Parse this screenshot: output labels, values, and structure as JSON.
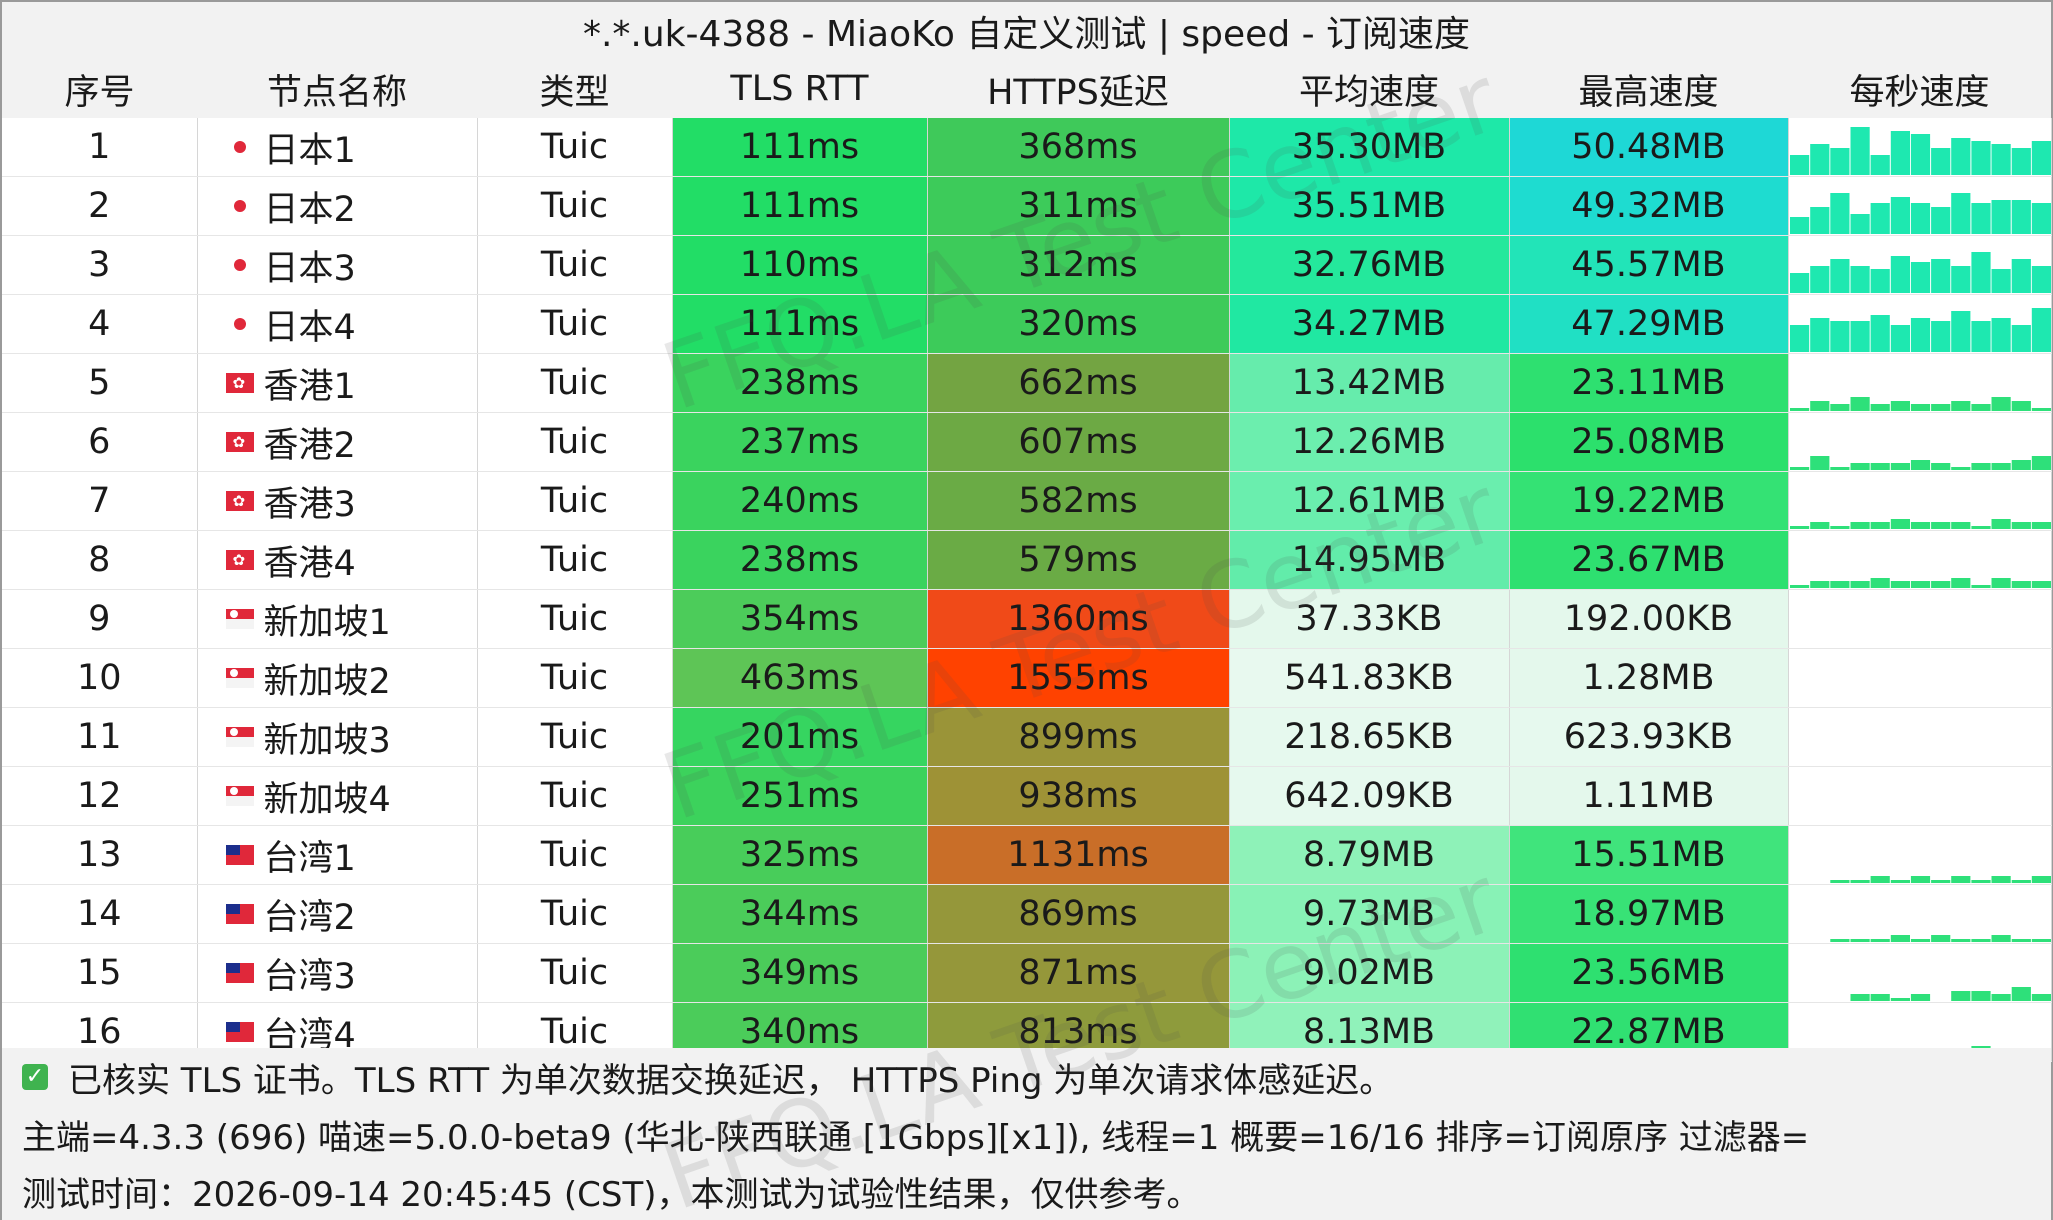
{
  "title": "*.*.uk-4388 - MiaoKo 自定义测试 | speed - 订阅速度",
  "columns": [
    "序号",
    "节点名称",
    "类型",
    "TLS RTT",
    "HTTPS延迟",
    "平均速度",
    "最高速度",
    "每秒速度"
  ],
  "rows": [
    {
      "idx": "1",
      "flag": "jp",
      "name": "日本1",
      "type": "Tuic",
      "tls": "111ms",
      "https": "368ms",
      "avg": "35.30MB",
      "max": "50.48MB",
      "tls_color": "#22dd66",
      "https_color": "#3fc95a",
      "avg_color": "#1ee8a8",
      "max_color": "#1ed8d6",
      "spark": [
        6,
        9,
        8,
        14,
        6,
        13,
        12,
        8,
        11,
        10,
        9,
        8,
        10
      ]
    },
    {
      "idx": "2",
      "flag": "jp",
      "name": "日本2",
      "type": "Tuic",
      "tls": "111ms",
      "https": "311ms",
      "avg": "35.51MB",
      "max": "49.32MB",
      "tls_color": "#22dd66",
      "https_color": "#3dcb5a",
      "avg_color": "#1ee8a8",
      "max_color": "#1edcd0",
      "spark": [
        5,
        8,
        12,
        6,
        9,
        11,
        9,
        8,
        12,
        9,
        10,
        10,
        9
      ]
    },
    {
      "idx": "3",
      "flag": "jp",
      "name": "日本3",
      "type": "Tuic",
      "tls": "110ms",
      "https": "312ms",
      "avg": "32.76MB",
      "max": "45.57MB",
      "tls_color": "#22dd66",
      "https_color": "#3dcb5a",
      "avg_color": "#24e89c",
      "max_color": "#22e4b8",
      "spark": [
        6,
        8,
        10,
        8,
        7,
        11,
        9,
        10,
        8,
        12,
        7,
        10,
        8
      ]
    },
    {
      "idx": "4",
      "flag": "jp",
      "name": "日本4",
      "type": "Tuic",
      "tls": "111ms",
      "https": "320ms",
      "avg": "34.27MB",
      "max": "47.29MB",
      "tls_color": "#22dd66",
      "https_color": "#3dcb5a",
      "avg_color": "#20e8a2",
      "max_color": "#20e0c4",
      "spark": [
        8,
        10,
        9,
        9,
        11,
        8,
        10,
        9,
        12,
        9,
        10,
        8,
        13
      ]
    },
    {
      "idx": "5",
      "flag": "hk",
      "name": "香港1",
      "type": "Tuic",
      "tls": "238ms",
      "https": "662ms",
      "avg": "13.42MB",
      "max": "23.11MB",
      "tls_color": "#3ad35e",
      "https_color": "#73a442",
      "avg_color": "#66ecac",
      "max_color": "#2ee070",
      "spark": [
        1,
        3,
        2,
        4,
        2,
        3,
        2,
        2,
        3,
        2,
        4,
        3,
        1
      ]
    },
    {
      "idx": "6",
      "flag": "hk",
      "name": "香港2",
      "type": "Tuic",
      "tls": "237ms",
      "https": "607ms",
      "avg": "12.26MB",
      "max": "25.08MB",
      "tls_color": "#3ad35e",
      "https_color": "#6da944",
      "avg_color": "#6ceeae",
      "max_color": "#2ce06c",
      "spark": [
        1,
        4,
        1,
        2,
        2,
        2,
        3,
        2,
        1,
        2,
        2,
        3,
        4
      ]
    },
    {
      "idx": "7",
      "flag": "hk",
      "name": "香港3",
      "type": "Tuic",
      "tls": "240ms",
      "https": "582ms",
      "avg": "12.61MB",
      "max": "19.22MB",
      "tls_color": "#3ad35e",
      "https_color": "#6aab45",
      "avg_color": "#6aeeae",
      "max_color": "#34e274",
      "spark": [
        1,
        2,
        1,
        2,
        2,
        3,
        2,
        2,
        2,
        1,
        3,
        2,
        2
      ]
    },
    {
      "idx": "8",
      "flag": "hk",
      "name": "香港4",
      "type": "Tuic",
      "tls": "238ms",
      "https": "579ms",
      "avg": "14.95MB",
      "max": "23.67MB",
      "tls_color": "#3ad35e",
      "https_color": "#6aab45",
      "avg_color": "#62ecaa",
      "max_color": "#2ee070",
      "spark": [
        1,
        2,
        2,
        2,
        3,
        2,
        2,
        2,
        3,
        1,
        3,
        2,
        2
      ]
    },
    {
      "idx": "9",
      "flag": "sg",
      "name": "新加坡1",
      "type": "Tuic",
      "tls": "354ms",
      "https": "1360ms",
      "avg": "37.33KB",
      "max": "192.00KB",
      "tls_color": "#4ccc5a",
      "https_color": "#f04a18",
      "avg_color": "#e4f8ec",
      "max_color": "#e4f8ec",
      "spark": []
    },
    {
      "idx": "10",
      "flag": "sg",
      "name": "新加坡2",
      "type": "Tuic",
      "tls": "463ms",
      "https": "1555ms",
      "avg": "541.83KB",
      "max": "1.28MB",
      "tls_color": "#5ec556",
      "https_color": "#ff4200",
      "avg_color": "#e8f9ef",
      "max_color": "#e4f8ec",
      "spark": []
    },
    {
      "idx": "11",
      "flag": "sg",
      "name": "新加坡3",
      "type": "Tuic",
      "tls": "201ms",
      "https": "899ms",
      "avg": "218.65KB",
      "max": "623.93KB",
      "tls_color": "#36d560",
      "https_color": "#9a9438",
      "avg_color": "#e6f9ee",
      "max_color": "#e6f9ee",
      "spark": []
    },
    {
      "idx": "12",
      "flag": "sg",
      "name": "新加坡4",
      "type": "Tuic",
      "tls": "251ms",
      "https": "938ms",
      "avg": "642.09KB",
      "max": "1.11MB",
      "tls_color": "#3cd25c",
      "https_color": "#9e9236",
      "avg_color": "#e6f9ee",
      "max_color": "#e4f8ec",
      "spark": []
    },
    {
      "idx": "13",
      "flag": "tw",
      "name": "台湾1",
      "type": "Tuic",
      "tls": "325ms",
      "https": "1131ms",
      "avg": "8.79MB",
      "max": "15.51MB",
      "tls_color": "#48cd5a",
      "https_color": "#c96e28",
      "avg_color": "#8ef2b8",
      "max_color": "#40e47c",
      "spark": [
        0,
        0,
        1,
        1,
        2,
        1,
        2,
        1,
        2,
        1,
        2,
        1,
        2
      ]
    },
    {
      "idx": "14",
      "flag": "tw",
      "name": "台湾2",
      "type": "Tuic",
      "tls": "344ms",
      "https": "869ms",
      "avg": "9.73MB",
      "max": "18.97MB",
      "tls_color": "#4bcc5a",
      "https_color": "#95973a",
      "avg_color": "#88f2b6",
      "max_color": "#38e276",
      "spark": [
        0,
        0,
        1,
        1,
        1,
        2,
        1,
        2,
        1,
        1,
        2,
        1,
        1
      ]
    },
    {
      "idx": "15",
      "flag": "tw",
      "name": "台湾3",
      "type": "Tuic",
      "tls": "349ms",
      "https": "871ms",
      "avg": "9.02MB",
      "max": "23.56MB",
      "tls_color": "#4bcc5a",
      "https_color": "#95973a",
      "avg_color": "#8cf2b7",
      "max_color": "#2ee070",
      "spark": [
        0,
        0,
        0,
        2,
        2,
        1,
        2,
        0,
        3,
        3,
        2,
        4,
        2
      ]
    },
    {
      "idx": "16",
      "flag": "tw",
      "name": "台湾4",
      "type": "Tuic",
      "tls": "340ms",
      "https": "813ms",
      "avg": "8.13MB",
      "max": "22.87MB",
      "tls_color": "#4bcc5a",
      "https_color": "#8e9b3c",
      "avg_color": "#90f2ba",
      "max_color": "#30e072",
      "spark": [
        0,
        0,
        0,
        1,
        2,
        1,
        2,
        2,
        1,
        4,
        2,
        1,
        1
      ]
    }
  ],
  "footer": {
    "line1": "已核实 TLS 证书。TLS RTT 为单次数据交换延迟， HTTPS Ping 为单次请求体感延迟。",
    "line2": "主端=4.3.3 (696) 喵速=5.0.0-beta9 (华北-陕西联通 [1Gbps][x1]), 线程=1 概要=16/16 排序=订阅原序 过滤器=",
    "line3": "测试时间：2026-09-14 20:45:45 (CST)，本测试为试验性结果，仅供参考。"
  },
  "watermark": "FFQ.LA Test Center",
  "colors": {
    "header_bg": "#f2f2f2",
    "spark_bar": "#2ee07a",
    "spark_bar_fast": "#1ee8b0",
    "check_green": "#3fb34f"
  }
}
